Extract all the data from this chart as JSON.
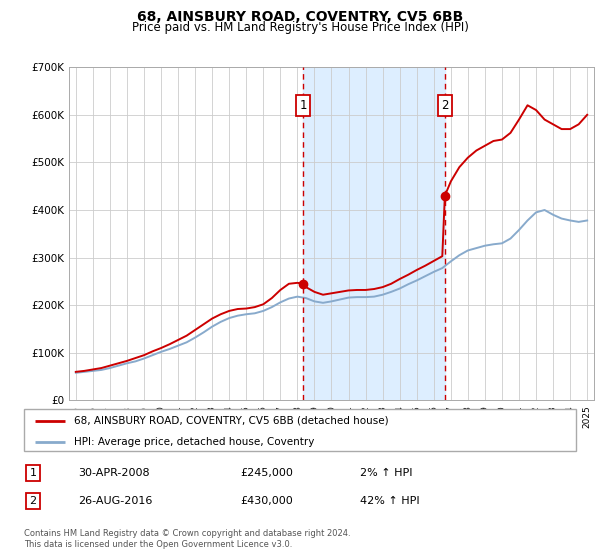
{
  "title": "68, AINSBURY ROAD, COVENTRY, CV5 6BB",
  "subtitle": "Price paid vs. HM Land Registry's House Price Index (HPI)",
  "ylim": [
    0,
    700000
  ],
  "yticks": [
    0,
    100000,
    200000,
    300000,
    400000,
    500000,
    600000,
    700000
  ],
  "ytick_labels": [
    "£0",
    "£100K",
    "£200K",
    "£300K",
    "£400K",
    "£500K",
    "£600K",
    "£700K"
  ],
  "xlim_start": 1994.6,
  "xlim_end": 2025.4,
  "sale1_x": 2008.33,
  "sale1_y": 245000,
  "sale2_x": 2016.65,
  "sale2_y": 430000,
  "shade_color": "#ddeeff",
  "vline_color": "#cc0000",
  "red_line_color": "#cc0000",
  "blue_line_color": "#88aacc",
  "legend_label_red": "68, AINSBURY ROAD, COVENTRY, CV5 6BB (detached house)",
  "legend_label_blue": "HPI: Average price, detached house, Coventry",
  "table_row1": [
    "1",
    "30-APR-2008",
    "£245,000",
    "2% ↑ HPI"
  ],
  "table_row2": [
    "2",
    "26-AUG-2016",
    "£430,000",
    "42% ↑ HPI"
  ],
  "footer": "Contains HM Land Registry data © Crown copyright and database right 2024.\nThis data is licensed under the Open Government Licence v3.0.",
  "hpi_years": [
    1995.0,
    1995.5,
    1996.0,
    1996.5,
    1997.0,
    1997.5,
    1998.0,
    1998.5,
    1999.0,
    1999.5,
    2000.0,
    2000.5,
    2001.0,
    2001.5,
    2002.0,
    2002.5,
    2003.0,
    2003.5,
    2004.0,
    2004.5,
    2005.0,
    2005.5,
    2006.0,
    2006.5,
    2007.0,
    2007.5,
    2008.0,
    2008.5,
    2009.0,
    2009.5,
    2010.0,
    2010.5,
    2011.0,
    2011.5,
    2012.0,
    2012.5,
    2013.0,
    2013.5,
    2014.0,
    2014.5,
    2015.0,
    2015.5,
    2016.0,
    2016.5,
    2017.0,
    2017.5,
    2018.0,
    2018.5,
    2019.0,
    2019.5,
    2020.0,
    2020.5,
    2021.0,
    2021.5,
    2022.0,
    2022.5,
    2023.0,
    2023.5,
    2024.0,
    2024.5,
    2025.0
  ],
  "hpi_values": [
    58000,
    60000,
    62000,
    64000,
    68000,
    73000,
    78000,
    82000,
    88000,
    95000,
    102000,
    108000,
    115000,
    122000,
    132000,
    143000,
    155000,
    165000,
    173000,
    178000,
    181000,
    183000,
    188000,
    196000,
    206000,
    214000,
    218000,
    215000,
    208000,
    205000,
    208000,
    212000,
    216000,
    217000,
    217000,
    218000,
    222000,
    228000,
    235000,
    244000,
    252000,
    261000,
    270000,
    278000,
    292000,
    305000,
    315000,
    320000,
    325000,
    328000,
    330000,
    340000,
    358000,
    378000,
    395000,
    400000,
    390000,
    382000,
    378000,
    375000,
    378000
  ],
  "property_years": [
    1995.0,
    1995.5,
    1996.0,
    1996.5,
    1997.0,
    1997.5,
    1998.0,
    1998.5,
    1999.0,
    1999.5,
    2000.0,
    2000.5,
    2001.0,
    2001.5,
    2002.0,
    2002.5,
    2003.0,
    2003.5,
    2004.0,
    2004.5,
    2005.0,
    2005.5,
    2006.0,
    2006.5,
    2007.0,
    2007.5,
    2008.0,
    2008.33,
    2008.5,
    2009.0,
    2009.5,
    2010.0,
    2010.5,
    2011.0,
    2011.5,
    2012.0,
    2012.5,
    2013.0,
    2013.5,
    2014.0,
    2014.5,
    2015.0,
    2015.5,
    2016.0,
    2016.5,
    2016.65,
    2017.0,
    2017.5,
    2018.0,
    2018.5,
    2019.0,
    2019.5,
    2020.0,
    2020.5,
    2021.0,
    2021.5,
    2022.0,
    2022.5,
    2023.0,
    2023.5,
    2024.0,
    2024.5,
    2025.0
  ],
  "property_values": [
    60000,
    62000,
    65000,
    68000,
    73000,
    78000,
    83000,
    89000,
    95000,
    103000,
    110000,
    118000,
    127000,
    136000,
    148000,
    160000,
    172000,
    181000,
    188000,
    192000,
    193000,
    196000,
    202000,
    215000,
    232000,
    245000,
    247000,
    245000,
    238000,
    228000,
    222000,
    225000,
    228000,
    231000,
    232000,
    232000,
    234000,
    238000,
    245000,
    255000,
    264000,
    274000,
    283000,
    293000,
    303000,
    430000,
    460000,
    490000,
    510000,
    525000,
    535000,
    545000,
    548000,
    562000,
    590000,
    620000,
    610000,
    590000,
    580000,
    570000,
    570000,
    580000,
    600000
  ]
}
